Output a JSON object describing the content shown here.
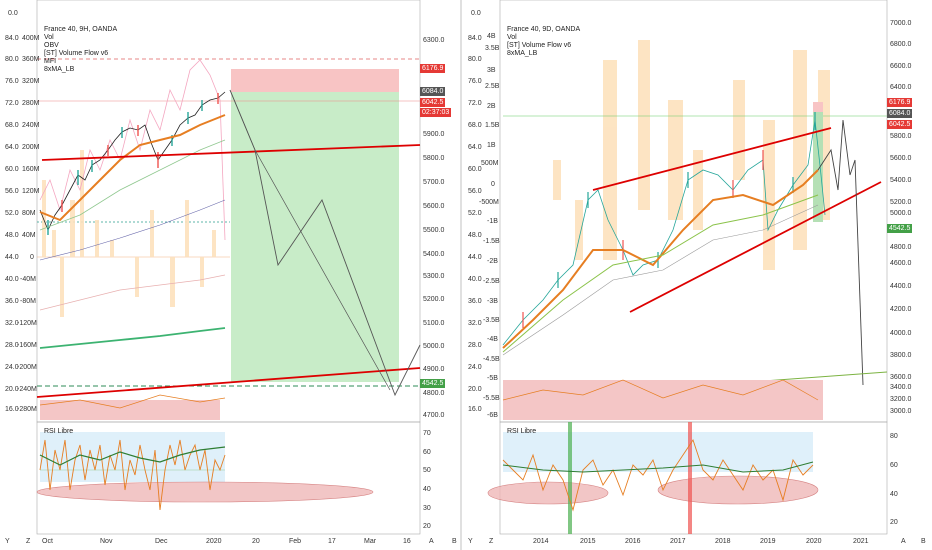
{
  "left": {
    "legend": [
      "France 40, 9H, OANDA",
      "Vol",
      "OBV",
      "[ST] Volume Flow v6",
      "MFI",
      "8xMA_LB"
    ],
    "left_axis": [
      "0.0",
      "84.0",
      "80.0",
      "76.0",
      "72.0",
      "68.0",
      "64.0",
      "60.0",
      "56.0",
      "52.0",
      "48.0",
      "44.0",
      "40.0",
      "36.0",
      "32.0",
      "28.0",
      "24.0",
      "20.0",
      "16.0"
    ],
    "vol_axis": [
      "400M",
      "360M",
      "320M",
      "280M",
      "240M",
      "200M",
      "160M",
      "120M",
      "80M",
      "40M",
      "0",
      "-40M",
      "-80M",
      "-120M",
      "-160M",
      "-200M",
      "-240M",
      "-280M"
    ],
    "price_axis": [
      "6300.0",
      "6176.9",
      "6084.0",
      "6042.5",
      "02:37:03",
      "5900.0",
      "5800.0",
      "5700.0",
      "5600.0",
      "5500.0",
      "5400.0",
      "5300.0",
      "5200.0",
      "5100.0",
      "5000.0",
      "4900.0",
      "4800.0",
      "4700.0"
    ],
    "price_tags": {
      "red": "6176.9",
      "dark": "6084.0",
      "red2": "6042.5",
      "timer": "02:37:03",
      "green": "4542.5"
    },
    "rsi_label": "RSI Libre",
    "rsi_axis": [
      "70",
      "60",
      "50",
      "40",
      "30",
      "20"
    ],
    "x_axis": [
      "Oct",
      "Nov",
      "Dec",
      "2020",
      "20",
      "Feb",
      "17",
      "Mar",
      "16"
    ],
    "bottom_buttons": {
      "y": "Y",
      "z": "Z",
      "a": "A",
      "b": "B"
    }
  },
  "right": {
    "legend": [
      "France 40, 9D, OANDA",
      "Vol",
      "[ST] Volume Flow v6",
      "8xMA_LB"
    ],
    "left_axis": [
      "0.0",
      "84.0",
      "80.0",
      "76.0",
      "72.0",
      "68.0",
      "64.0",
      "60.0",
      "56.0",
      "52.0",
      "48.0",
      "44.0",
      "40.0",
      "36.0",
      "32.0",
      "28.0",
      "24.0",
      "20.0",
      "16.0"
    ],
    "vol_axis": [
      "4B",
      "3.5B",
      "3B",
      "2.5B",
      "2B",
      "1.5B",
      "1B",
      "500M",
      "0",
      "-500M",
      "-1B",
      "-1.5B",
      "-2B",
      "-2.5B",
      "-3B",
      "-3.5B",
      "-4B",
      "-4.5B",
      "-5B",
      "-5.5B",
      "-6B"
    ],
    "price_axis": [
      "7000.0",
      "6800.0",
      "6600.0",
      "6400.0",
      "6176.9",
      "6084.0",
      "6042.5",
      "5800.0",
      "5600.0",
      "5400.0",
      "5200.0",
      "5000.0",
      "4800.0",
      "4600.0",
      "4400.0",
      "4200.0",
      "4000.0",
      "3800.0",
      "3600.0",
      "3400.0",
      "3200.0",
      "3000.0"
    ],
    "price_tags": {
      "red": "6176.9",
      "dark": "6084.0",
      "red2": "6042.5",
      "green": "4542.5"
    },
    "rsi_label": "RSI Libre",
    "rsi_axis": [
      "80",
      "60",
      "40",
      "20"
    ],
    "x_axis": [
      "2014",
      "2015",
      "2016",
      "2017",
      "2018",
      "2019",
      "2020",
      "2021"
    ],
    "bottom_buttons": {
      "y": "Y",
      "z": "Z",
      "a": "A",
      "b": "B"
    }
  }
}
